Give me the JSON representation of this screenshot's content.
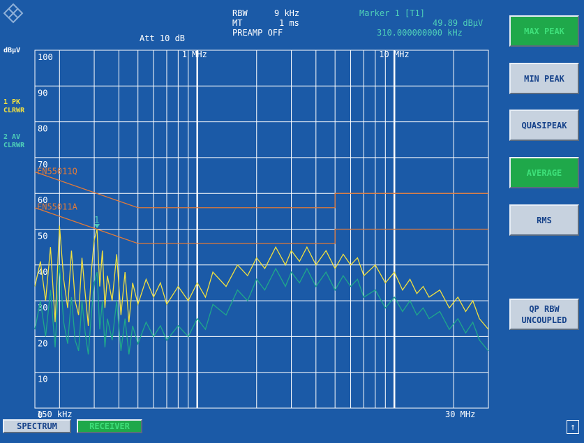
{
  "colors": {
    "background": "#1b5aa7",
    "grid": "#ffffff",
    "trace1": "#f0e040",
    "trace2": "#1fa88a",
    "limit": "#e07a3a",
    "softkey_active": "#1fa84a",
    "softkey": "#c7d2df"
  },
  "header": {
    "att": "Att 10 dB",
    "rbw_label": "RBW",
    "rbw_value": "9 kHz",
    "mt_label": "MT",
    "mt_value": "1 ms",
    "preamp": "PREAMP OFF",
    "marker_title": "Marker 1 [T1]",
    "marker_level": "49.89 dBµV",
    "marker_freq": "310.000000000 kHz"
  },
  "left_panel": {
    "unit": "dBµV",
    "trace1_line1": "1 PK",
    "trace1_line2": "CLRWR",
    "trace2_line1": "2 AV",
    "trace2_line2": "CLRWR"
  },
  "chart_data": {
    "type": "line",
    "xscale": "log",
    "xlim": [
      0.15,
      30
    ],
    "ylim": [
      0,
      100
    ],
    "x_start_label": "150 kHz",
    "x_stop_label": "30 MHz",
    "decade_labels": [
      {
        "x": 1,
        "label": "1 MHz"
      },
      {
        "x": 10,
        "label": "10 MHz"
      }
    ],
    "y_ticks": [
      {
        "v": 100,
        "label": "100"
      },
      {
        "v": 90,
        "label": "90"
      },
      {
        "v": 80,
        "label": "80"
      },
      {
        "v": 70,
        "label": "70"
      },
      {
        "v": 60,
        "label": "60"
      },
      {
        "v": 50,
        "label": "50"
      },
      {
        "v": 40,
        "label": "40"
      },
      {
        "v": 30,
        "label": "30"
      },
      {
        "v": 20,
        "label": "20"
      },
      {
        "v": 10,
        "label": "10"
      },
      {
        "v": 0,
        "label": "0"
      }
    ],
    "limit_lines": [
      {
        "name": "EN55011Q",
        "points": [
          [
            0.15,
            66
          ],
          [
            0.5,
            56
          ],
          [
            5,
            56
          ],
          [
            5,
            60
          ],
          [
            30,
            60
          ]
        ]
      },
      {
        "name": "EN55011A",
        "points": [
          [
            0.15,
            56
          ],
          [
            0.5,
            46
          ],
          [
            5,
            46
          ],
          [
            5,
            50
          ],
          [
            30,
            50
          ]
        ]
      }
    ],
    "series": [
      {
        "name": "1 PK",
        "points": [
          [
            0.15,
            34
          ],
          [
            0.16,
            41
          ],
          [
            0.17,
            30
          ],
          [
            0.18,
            45
          ],
          [
            0.19,
            24
          ],
          [
            0.2,
            51
          ],
          [
            0.21,
            36
          ],
          [
            0.22,
            28
          ],
          [
            0.23,
            44
          ],
          [
            0.24,
            30
          ],
          [
            0.25,
            26
          ],
          [
            0.26,
            42
          ],
          [
            0.27,
            32
          ],
          [
            0.28,
            23
          ],
          [
            0.29,
            38
          ],
          [
            0.3,
            47
          ],
          [
            0.31,
            50
          ],
          [
            0.32,
            34
          ],
          [
            0.33,
            44
          ],
          [
            0.34,
            28
          ],
          [
            0.35,
            37
          ],
          [
            0.37,
            30
          ],
          [
            0.39,
            43
          ],
          [
            0.41,
            26
          ],
          [
            0.43,
            38
          ],
          [
            0.45,
            24
          ],
          [
            0.47,
            35
          ],
          [
            0.5,
            29
          ],
          [
            0.55,
            36
          ],
          [
            0.6,
            31
          ],
          [
            0.65,
            35
          ],
          [
            0.7,
            29
          ],
          [
            0.8,
            34
          ],
          [
            0.9,
            30
          ],
          [
            1.0,
            35
          ],
          [
            1.1,
            31
          ],
          [
            1.2,
            38
          ],
          [
            1.4,
            34
          ],
          [
            1.6,
            40
          ],
          [
            1.8,
            37
          ],
          [
            2.0,
            42
          ],
          [
            2.2,
            39
          ],
          [
            2.5,
            45
          ],
          [
            2.8,
            40
          ],
          [
            3.0,
            44
          ],
          [
            3.3,
            41
          ],
          [
            3.6,
            45
          ],
          [
            4.0,
            40
          ],
          [
            4.5,
            44
          ],
          [
            5.0,
            39
          ],
          [
            5.5,
            43
          ],
          [
            6,
            40
          ],
          [
            6.5,
            42
          ],
          [
            7,
            37
          ],
          [
            8,
            40
          ],
          [
            9,
            35
          ],
          [
            10,
            38
          ],
          [
            11,
            33
          ],
          [
            12,
            36
          ],
          [
            13,
            32
          ],
          [
            14,
            34
          ],
          [
            15,
            31
          ],
          [
            17,
            33
          ],
          [
            19,
            28
          ],
          [
            21,
            31
          ],
          [
            23,
            27
          ],
          [
            25,
            30
          ],
          [
            27,
            25
          ],
          [
            30,
            22
          ]
        ]
      },
      {
        "name": "2 AV",
        "points": [
          [
            0.15,
            22
          ],
          [
            0.16,
            30
          ],
          [
            0.17,
            20
          ],
          [
            0.18,
            33
          ],
          [
            0.19,
            17
          ],
          [
            0.2,
            40
          ],
          [
            0.21,
            24
          ],
          [
            0.22,
            18
          ],
          [
            0.23,
            31
          ],
          [
            0.24,
            19
          ],
          [
            0.25,
            16
          ],
          [
            0.26,
            30
          ],
          [
            0.27,
            21
          ],
          [
            0.28,
            15
          ],
          [
            0.29,
            26
          ],
          [
            0.3,
            35
          ],
          [
            0.31,
            38
          ],
          [
            0.32,
            22
          ],
          [
            0.33,
            30
          ],
          [
            0.34,
            17
          ],
          [
            0.35,
            25
          ],
          [
            0.37,
            19
          ],
          [
            0.39,
            30
          ],
          [
            0.41,
            16
          ],
          [
            0.43,
            25
          ],
          [
            0.45,
            15
          ],
          [
            0.47,
            23
          ],
          [
            0.5,
            18
          ],
          [
            0.55,
            24
          ],
          [
            0.6,
            20
          ],
          [
            0.65,
            23
          ],
          [
            0.7,
            19
          ],
          [
            0.8,
            23
          ],
          [
            0.9,
            20
          ],
          [
            1.0,
            25
          ],
          [
            1.1,
            22
          ],
          [
            1.2,
            29
          ],
          [
            1.4,
            26
          ],
          [
            1.6,
            33
          ],
          [
            1.8,
            30
          ],
          [
            2.0,
            36
          ],
          [
            2.2,
            33
          ],
          [
            2.5,
            39
          ],
          [
            2.8,
            34
          ],
          [
            3.0,
            38
          ],
          [
            3.3,
            35
          ],
          [
            3.6,
            39
          ],
          [
            4.0,
            34
          ],
          [
            4.5,
            38
          ],
          [
            5.0,
            33
          ],
          [
            5.5,
            37
          ],
          [
            6,
            34
          ],
          [
            6.5,
            36
          ],
          [
            7,
            31
          ],
          [
            8,
            33
          ],
          [
            9,
            28
          ],
          [
            10,
            31
          ],
          [
            11,
            27
          ],
          [
            12,
            30
          ],
          [
            13,
            26
          ],
          [
            14,
            28
          ],
          [
            15,
            25
          ],
          [
            17,
            27
          ],
          [
            19,
            22
          ],
          [
            21,
            25
          ],
          [
            23,
            21
          ],
          [
            25,
            24
          ],
          [
            27,
            19
          ],
          [
            30,
            16
          ]
        ]
      }
    ],
    "marker": {
      "label": "1",
      "x": 0.31,
      "y": 49.89
    }
  },
  "softkeys": [
    {
      "label": "MAX PEAK",
      "active": true
    },
    {
      "label": "MIN PEAK",
      "active": false
    },
    {
      "label": "QUASIPEAK",
      "active": false
    },
    {
      "label": "AVERAGE",
      "active": true
    },
    {
      "label": "RMS",
      "active": false
    },
    {
      "label": "QP RBW\nUNCOUPLED",
      "active": false
    }
  ],
  "tabs": {
    "spectrum": "SPECTRUM",
    "receiver": "RECEIVER"
  },
  "up_icon": "arrow-up-icon",
  "up_glyph": "↑"
}
